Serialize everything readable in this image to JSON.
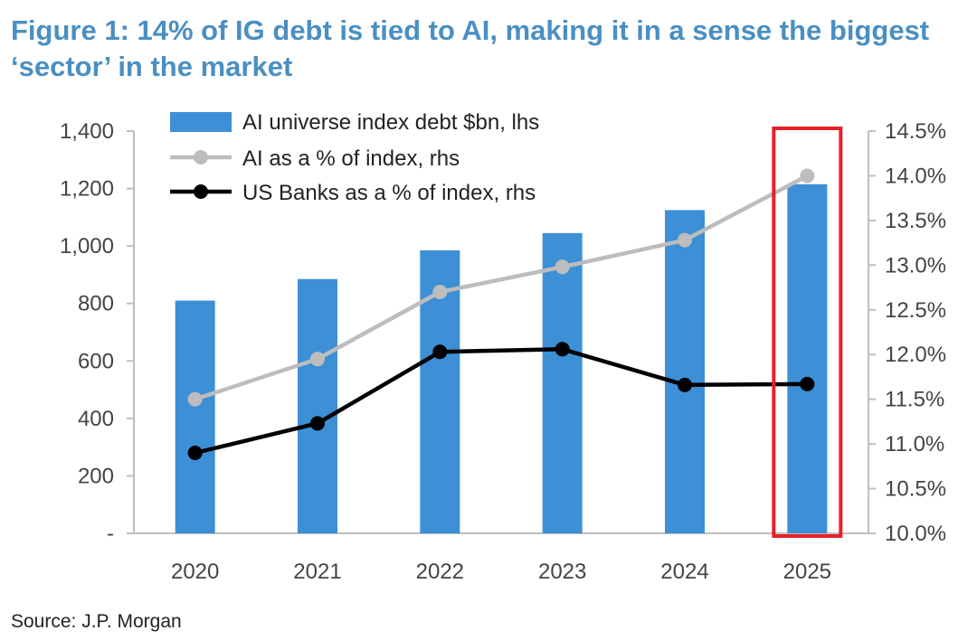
{
  "figure": {
    "title": "Figure 1: 14% of IG debt is tied to AI, making it in a sense the biggest ‘sector’ in the market",
    "source": "Source: J.P. Morgan"
  },
  "colors": {
    "title": "#4a8fc2",
    "bars": "#3d8fd6",
    "ai_line": "#bdbdbd",
    "banks_line": "#000000",
    "highlight_box": "#e8202a",
    "axis": "#bfbfbf"
  },
  "chart_data": {
    "type": "bar",
    "categories": [
      "2020",
      "2021",
      "2022",
      "2023",
      "2024",
      "2025"
    ],
    "left_axis": {
      "ylim": [
        0,
        1400
      ],
      "ticks": [
        0,
        200,
        400,
        600,
        800,
        1000,
        1200,
        1400
      ],
      "tick_labels": [
        "-",
        "200",
        "400",
        "600",
        "800",
        "1,000",
        "1,200",
        "1,400"
      ]
    },
    "right_axis": {
      "ylim": [
        10.0,
        14.5
      ],
      "ticks": [
        10.0,
        10.5,
        11.0,
        11.5,
        12.0,
        12.5,
        13.0,
        13.5,
        14.0,
        14.5
      ],
      "tick_labels": [
        "10.0%",
        "10.5%",
        "11.0%",
        "11.5%",
        "12.0%",
        "12.5%",
        "13.0%",
        "13.5%",
        "14.0%",
        "14.5%"
      ]
    },
    "series": [
      {
        "name": "AI universe index debt $bn, lhs",
        "kind": "bar",
        "axis": "left",
        "values": [
          810,
          885,
          985,
          1045,
          1125,
          1215
        ]
      },
      {
        "name": "AI as a % of index, rhs",
        "kind": "line",
        "axis": "right",
        "values": [
          11.5,
          11.95,
          12.7,
          12.98,
          13.28,
          14.0
        ]
      },
      {
        "name": "US Banks as a % of index, rhs",
        "kind": "line",
        "axis": "right",
        "values": [
          10.9,
          11.23,
          12.03,
          12.06,
          11.66,
          11.67
        ]
      }
    ],
    "highlighted_category": "2025",
    "grid": false,
    "legend_position": "top-left"
  }
}
